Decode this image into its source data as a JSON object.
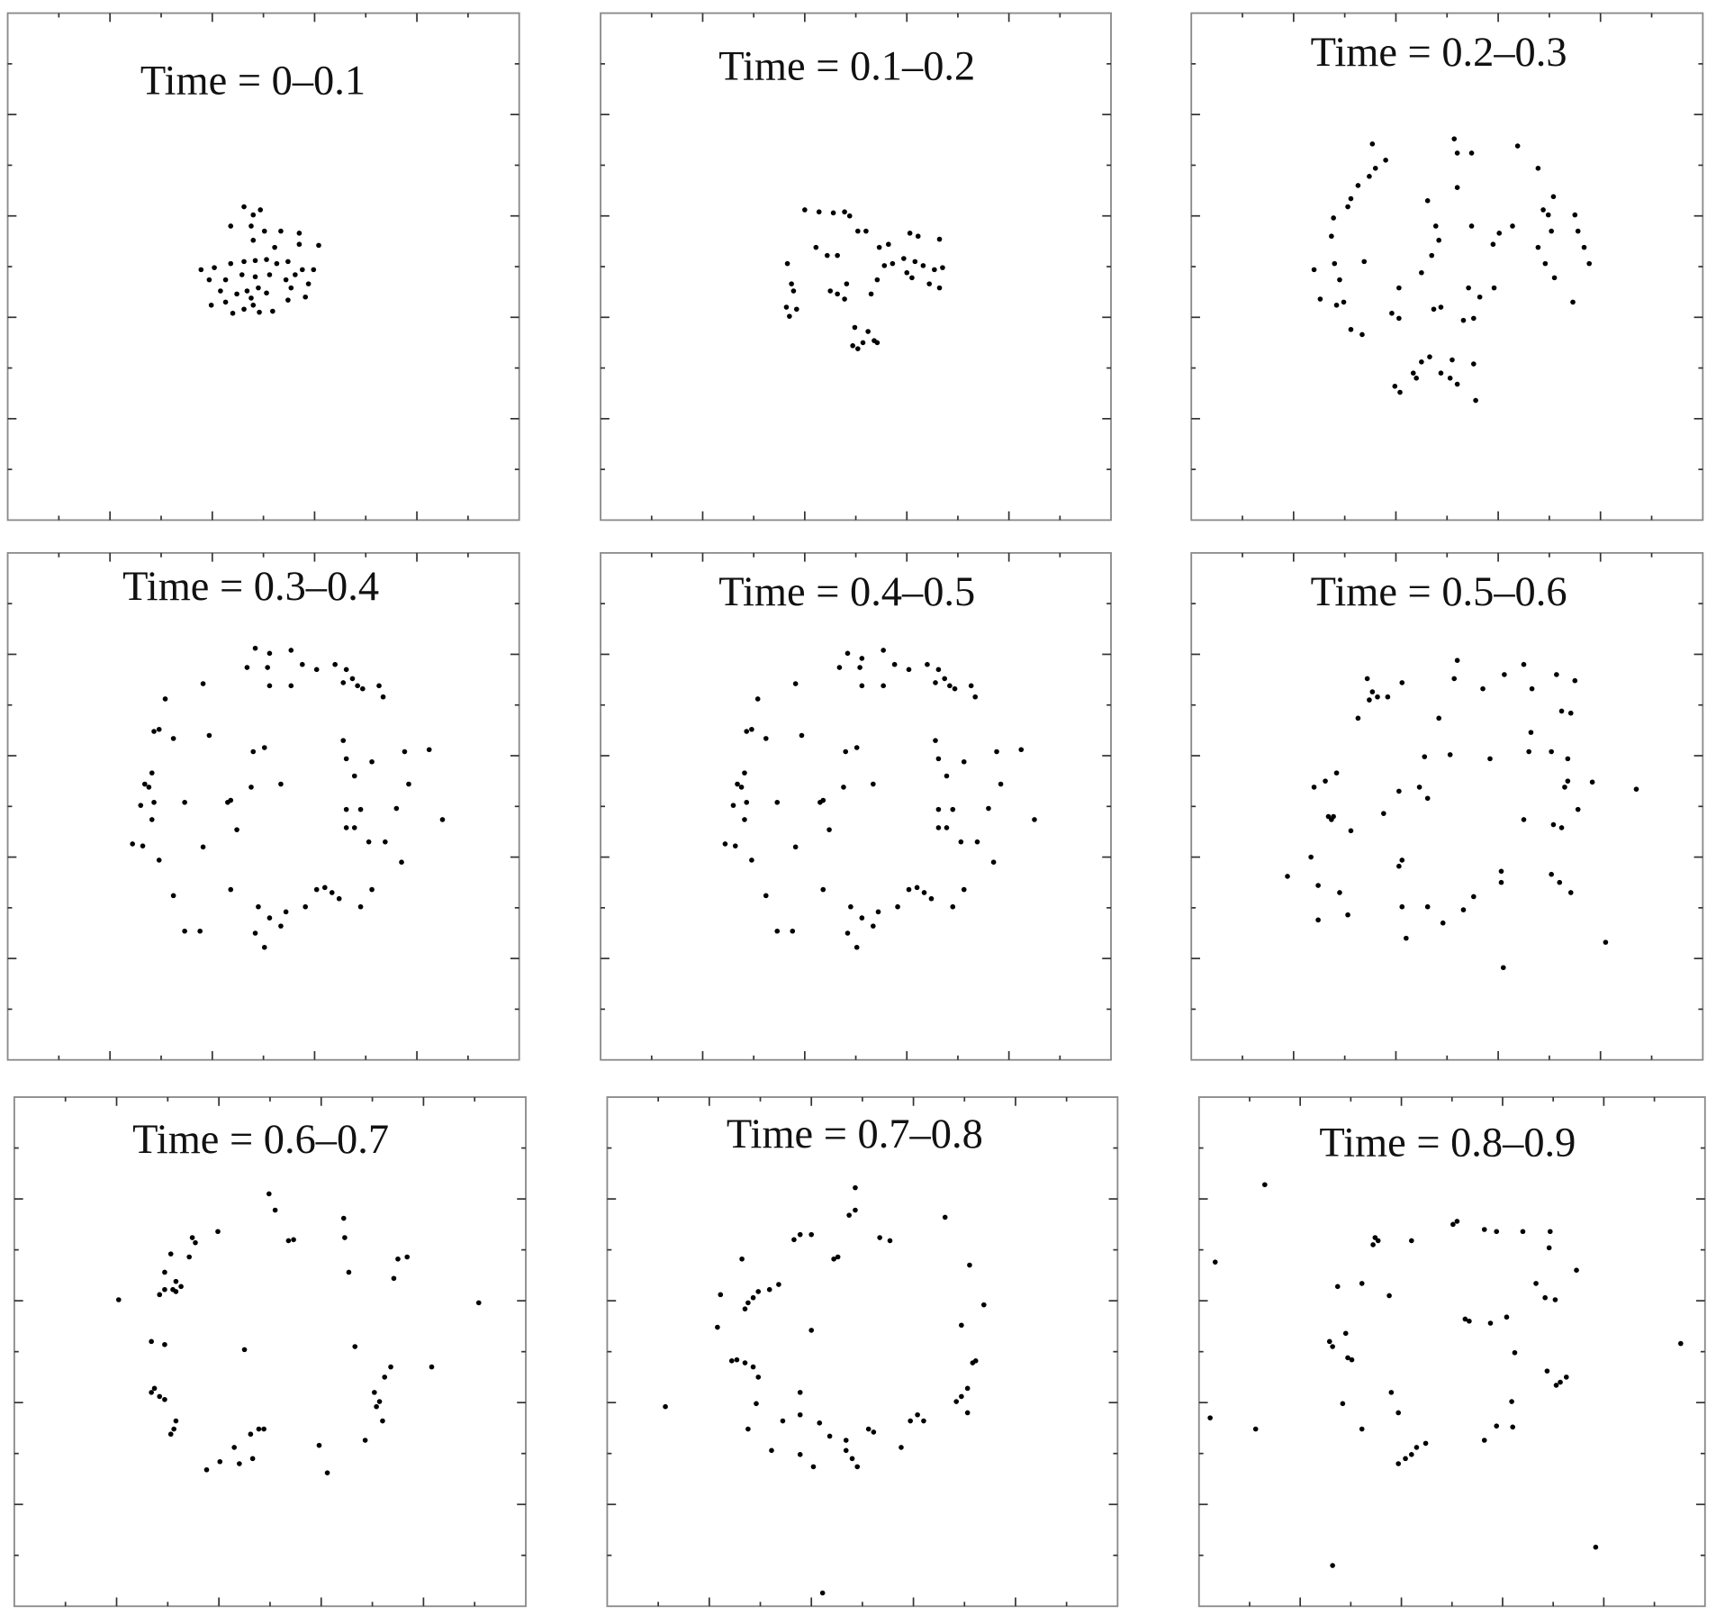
{
  "chart_data": [
    {
      "type": "scatter",
      "title": "Time = 0–0.1",
      "color": "#000000",
      "xlim": [
        0,
        5
      ],
      "ylim": [
        0,
        5
      ],
      "xticks": [
        0.5,
        1,
        1.5,
        2,
        2.5,
        3,
        3.5,
        4,
        4.5
      ],
      "yticks": [
        0.5,
        1,
        1.5,
        2,
        2.5,
        3,
        3.5,
        4,
        4.5
      ],
      "x": [
        2.31,
        2.4,
        2.47,
        2.18,
        2.38,
        2.51,
        2.67,
        2.85,
        3.04,
        2.85,
        2.4,
        2.61,
        1.89,
        2.02,
        2.18,
        2.31,
        2.42,
        2.53,
        2.63,
        2.74,
        2.88,
        2.99,
        1.97,
        2.13,
        2.29,
        2.42,
        2.56,
        2.72,
        2.94,
        2.08,
        2.24,
        2.34,
        2.45,
        2.53,
        2.77,
        2.91,
        1.99,
        2.13,
        2.2,
        2.31,
        2.4,
        2.46,
        2.59,
        2.74,
        2.38,
        2.81
      ],
      "values": [
        3.09,
        3.01,
        3.06,
        2.9,
        2.9,
        2.85,
        2.85,
        2.83,
        2.71,
        2.72,
        2.76,
        2.69,
        2.47,
        2.49,
        2.53,
        2.55,
        2.56,
        2.57,
        2.53,
        2.55,
        2.47,
        2.47,
        2.37,
        2.37,
        2.42,
        2.4,
        2.42,
        2.37,
        2.33,
        2.26,
        2.23,
        2.26,
        2.29,
        2.24,
        2.29,
        2.2,
        2.12,
        2.15,
        2.04,
        2.08,
        2.12,
        2.05,
        2.06,
        2.17,
        2.19,
        2.42
      ]
    },
    {
      "type": "scatter",
      "title": "Time = 0.1–0.2",
      "color": "#000000",
      "xlim": [
        0,
        5
      ],
      "ylim": [
        0,
        5
      ],
      "xticks": [
        0.5,
        1,
        1.5,
        2,
        2.5,
        3,
        3.5,
        4,
        4.5
      ],
      "yticks": [
        0.5,
        1,
        1.5,
        2,
        2.5,
        3,
        3.5,
        4,
        4.5
      ],
      "x": [
        2.0,
        2.14,
        2.28,
        2.39,
        2.44,
        2.52,
        2.6,
        2.22,
        2.32,
        2.11,
        2.73,
        2.86,
        2.82,
        3.03,
        3.11,
        3.32,
        2.97,
        3.08,
        3.16,
        3.27,
        3.35,
        3.0,
        3.22,
        3.32,
        3.05,
        2.78,
        2.71,
        2.65,
        2.41,
        2.32,
        2.25,
        2.39,
        1.83,
        1.87,
        1.89,
        1.82,
        1.85,
        1.92,
        2.49,
        2.62,
        2.68,
        2.57,
        2.47,
        2.52,
        2.71
      ],
      "values": [
        3.06,
        3.04,
        3.03,
        3.04,
        3.0,
        2.85,
        2.85,
        2.61,
        2.61,
        2.69,
        2.69,
        2.53,
        2.72,
        2.83,
        2.8,
        2.77,
        2.58,
        2.55,
        2.51,
        2.47,
        2.49,
        2.44,
        2.33,
        2.29,
        2.39,
        2.51,
        2.37,
        2.23,
        2.33,
        2.23,
        2.26,
        2.18,
        2.53,
        2.33,
        2.26,
        2.1,
        2.01,
        2.08,
        1.9,
        1.86,
        1.77,
        1.75,
        1.72,
        1.69,
        1.75
      ]
    },
    {
      "type": "scatter",
      "title": "Time = 0.2–0.3",
      "color": "#000000",
      "xlim": [
        0,
        5
      ],
      "ylim": [
        0,
        5
      ],
      "xticks": [
        0.5,
        1,
        1.5,
        2,
        2.5,
        3,
        3.5,
        4,
        4.5
      ],
      "yticks": [
        0.5,
        1,
        1.5,
        2,
        2.5,
        3,
        3.5,
        4,
        4.5
      ],
      "x": [
        1.77,
        1.9,
        1.8,
        1.74,
        1.63,
        1.56,
        1.53,
        1.39,
        1.37,
        1.4,
        1.2,
        1.45,
        1.26,
        1.42,
        1.49,
        1.56,
        1.67,
        1.69,
        2.31,
        2.39,
        2.42,
        2.35,
        2.25,
        2.57,
        2.6,
        2.74,
        2.6,
        3.19,
        3.39,
        3.54,
        3.49,
        3.52,
        3.44,
        3.75,
        3.78,
        3.84,
        3.89,
        3.39,
        3.46,
        3.55,
        3.73,
        3.14,
        3.01,
        2.74,
        2.95,
        2.71,
        2.82,
        2.96,
        2.76,
        2.66,
        2.37,
        2.44,
        2.03,
        1.96,
        2.03,
        2.25,
        2.33,
        2.44,
        2.55,
        2.6,
        2.76,
        2.78,
        2.53,
        2.2,
        1.99,
        2.04,
        2.17
      ],
      "values": [
        3.71,
        3.55,
        3.47,
        3.39,
        3.3,
        3.17,
        3.09,
        2.98,
        2.8,
        2.53,
        2.47,
        2.37,
        2.18,
        2.12,
        2.15,
        1.88,
        1.83,
        2.55,
        3.15,
        2.9,
        2.76,
        2.61,
        2.44,
        3.76,
        3.62,
        3.62,
        3.28,
        3.69,
        3.47,
        3.19,
        3.01,
        2.85,
        3.06,
        3.01,
        2.85,
        2.69,
        2.53,
        2.69,
        2.53,
        2.39,
        2.15,
        2.9,
        2.83,
        2.9,
        2.72,
        2.29,
        2.2,
        2.29,
        1.99,
        1.97,
        2.08,
        2.1,
        2.29,
        2.04,
        1.99,
        1.56,
        1.61,
        1.45,
        1.58,
        1.34,
        1.54,
        1.18,
        1.4,
        1.4,
        1.32,
        1.26,
        1.45
      ]
    },
    {
      "type": "scatter",
      "title": "Time = 0.3–0.4",
      "color": "#000000",
      "xlim": [
        0,
        5
      ],
      "ylim": [
        0,
        5
      ],
      "xticks": [
        0.5,
        1,
        1.5,
        2,
        2.5,
        3,
        3.5,
        4,
        4.5
      ],
      "yticks": [
        0.5,
        1,
        1.5,
        2,
        2.5,
        3,
        3.5,
        4,
        4.5
      ],
      "x": [
        2.42,
        2.56,
        2.77,
        2.88,
        3.02,
        3.2,
        3.31,
        3.37,
        3.42,
        3.28,
        3.47,
        3.63,
        3.67,
        2.34,
        2.54,
        2.56,
        2.77,
        1.91,
        1.54,
        1.48,
        1.43,
        1.62,
        1.97,
        1.41,
        1.34,
        1.38,
        1.43,
        1.3,
        1.41,
        1.22,
        1.32,
        1.48,
        1.62,
        1.73,
        1.88,
        2.18,
        2.45,
        2.42,
        2.51,
        2.56,
        2.67,
        2.72,
        2.91,
        3.02,
        3.1,
        3.17,
        3.24,
        3.45,
        3.56,
        3.85,
        4.25,
        3.69,
        3.53,
        3.31,
        3.39,
        3.31,
        3.45,
        3.8,
        3.92,
        3.56,
        3.39,
        3.28,
        3.31,
        3.88,
        4.12,
        2.4,
        2.51,
        2.38,
        2.67,
        2.18,
        2.15,
        2.24,
        1.91,
        1.73
      ],
      "values": [
        4.06,
        4.01,
        4.04,
        3.9,
        3.85,
        3.9,
        3.85,
        3.76,
        3.69,
        3.72,
        3.66,
        3.69,
        3.58,
        3.87,
        3.87,
        3.69,
        3.69,
        3.71,
        3.56,
        3.26,
        3.24,
        3.17,
        3.2,
        2.83,
        2.72,
        2.69,
        2.54,
        2.51,
        2.37,
        2.13,
        2.11,
        1.97,
        1.62,
        1.27,
        1.27,
        1.68,
        1.51,
        1.25,
        1.11,
        1.4,
        1.32,
        1.46,
        1.51,
        1.68,
        1.7,
        1.65,
        1.59,
        1.51,
        1.68,
        1.95,
        2.37,
        2.15,
        2.15,
        2.29,
        2.29,
        2.47,
        2.47,
        2.48,
        2.72,
        2.94,
        2.8,
        3.15,
        2.97,
        3.04,
        3.06,
        3.04,
        3.08,
        2.69,
        2.72,
        2.56,
        2.54,
        2.27,
        2.1,
        2.54
      ]
    },
    {
      "type": "scatter",
      "title": "Time = 0.4–0.5",
      "color": "#000000",
      "xlim": [
        0,
        5
      ],
      "ylim": [
        0,
        5
      ],
      "xticks": [
        0.5,
        1,
        1.5,
        2,
        2.5,
        3,
        3.5,
        4,
        4.5
      ],
      "yticks": [
        0.5,
        1,
        1.5,
        2,
        2.5,
        3,
        3.5,
        4,
        4.5
      ],
      "x": [
        2.42,
        2.56,
        2.77,
        2.88,
        3.02,
        3.2,
        3.31,
        3.37,
        3.42,
        3.28,
        3.47,
        3.63,
        3.67,
        2.34,
        2.54,
        2.56,
        2.77,
        1.91,
        1.54,
        1.48,
        1.43,
        1.62,
        1.97,
        1.41,
        1.34,
        1.38,
        1.43,
        1.3,
        1.41,
        1.22,
        1.32,
        1.48,
        1.62,
        1.73,
        1.88,
        2.18,
        2.45,
        2.42,
        2.51,
        2.56,
        2.67,
        2.72,
        2.91,
        3.02,
        3.1,
        3.17,
        3.24,
        3.45,
        3.56,
        3.85,
        4.25,
        3.69,
        3.53,
        3.31,
        3.39,
        3.31,
        3.45,
        3.8,
        3.92,
        3.56,
        3.39,
        3.28,
        3.31,
        3.88,
        4.12,
        2.4,
        2.51,
        2.38,
        2.67,
        2.18,
        2.15,
        2.24,
        1.91,
        1.73
      ],
      "values": [
        4.01,
        3.96,
        4.04,
        3.9,
        3.85,
        3.9,
        3.85,
        3.76,
        3.69,
        3.72,
        3.66,
        3.69,
        3.58,
        3.87,
        3.87,
        3.69,
        3.69,
        3.71,
        3.56,
        3.26,
        3.24,
        3.17,
        3.2,
        2.83,
        2.72,
        2.69,
        2.54,
        2.51,
        2.37,
        2.13,
        2.11,
        1.97,
        1.62,
        1.27,
        1.27,
        1.68,
        1.51,
        1.25,
        1.11,
        1.4,
        1.32,
        1.46,
        1.51,
        1.68,
        1.7,
        1.65,
        1.59,
        1.51,
        1.68,
        1.95,
        2.37,
        2.15,
        2.15,
        2.29,
        2.29,
        2.47,
        2.47,
        2.48,
        2.72,
        2.94,
        2.8,
        3.15,
        2.97,
        3.04,
        3.06,
        3.04,
        3.08,
        2.69,
        2.72,
        2.56,
        2.54,
        2.27,
        2.1,
        2.54
      ]
    },
    {
      "type": "scatter",
      "title": "Time = 0.5–0.6",
      "color": "#000000",
      "xlim": [
        0,
        5
      ],
      "ylim": [
        0,
        5
      ],
      "xticks": [
        0.5,
        1,
        1.5,
        2,
        2.5,
        3,
        3.5,
        4,
        4.5
      ],
      "yticks": [
        0.5,
        1,
        1.5,
        2,
        2.5,
        3,
        3.5,
        4,
        4.5
      ],
      "x": [
        1.72,
        1.77,
        1.74,
        1.82,
        1.92,
        2.06,
        1.63,
        2.6,
        2.57,
        2.85,
        3.06,
        3.25,
        3.33,
        3.57,
        3.75,
        3.62,
        3.71,
        2.42,
        3.52,
        3.68,
        3.32,
        3.3,
        2.28,
        2.53,
        2.92,
        2.23,
        2.03,
        2.31,
        1.42,
        1.31,
        1.2,
        1.34,
        1.39,
        1.37,
        1.56,
        3.68,
        3.65,
        3.92,
        4.35,
        3.78,
        3.25,
        3.54,
        3.62,
        2.06,
        2.03,
        1.17,
        0.94,
        1.24,
        1.45,
        1.53,
        1.24,
        2.06,
        2.31,
        2.1,
        2.46,
        2.66,
        2.76,
        3.03,
        3.03,
        3.52,
        3.6,
        3.71,
        4.05,
        3.05,
        1.88
      ],
      "values": [
        3.76,
        3.63,
        3.55,
        3.58,
        3.58,
        3.72,
        3.37,
        3.94,
        3.76,
        3.66,
        3.8,
        3.9,
        3.66,
        3.8,
        3.74,
        3.44,
        3.42,
        3.37,
        3.04,
        2.97,
        3.23,
        3.04,
        2.99,
        3.01,
        2.97,
        2.69,
        2.65,
        2.58,
        2.83,
        2.75,
        2.69,
        2.4,
        2.4,
        2.37,
        2.26,
        2.75,
        2.69,
        2.74,
        2.67,
        2.47,
        2.37,
        2.32,
        2.29,
        1.97,
        1.91,
        2.0,
        1.81,
        1.72,
        1.65,
        1.43,
        1.38,
        1.51,
        1.51,
        1.2,
        1.35,
        1.48,
        1.61,
        1.86,
        1.75,
        1.83,
        1.75,
        1.65,
        1.16,
        0.91,
        2.43
      ]
    },
    {
      "type": "scatter",
      "title": "Time = 0.6–0.7",
      "color": "#000000",
      "xlim": [
        0,
        5
      ],
      "ylim": [
        0,
        5
      ],
      "xticks": [
        0.5,
        1,
        1.5,
        2,
        2.5,
        3,
        3.5,
        4,
        4.5
      ],
      "yticks": [
        0.5,
        1,
        1.5,
        2,
        2.5,
        3,
        3.5,
        4,
        4.5
      ],
      "x": [
        2.49,
        2.55,
        2.68,
        2.73,
        3.22,
        3.23,
        3.27,
        1.99,
        1.74,
        1.77,
        1.71,
        1.53,
        1.47,
        1.58,
        1.63,
        1.47,
        1.42,
        1.55,
        1.58,
        3.75,
        3.84,
        3.71,
        1.02,
        4.54,
        1.34,
        1.47,
        2.25,
        3.33,
        3.68,
        3.62,
        4.08,
        1.37,
        1.34,
        1.42,
        1.47,
        3.52,
        3.57,
        3.54,
        3.6,
        1.58,
        1.56,
        1.53,
        3.43,
        2.31,
        2.39,
        2.44,
        2.15,
        2.2,
        2.33,
        2.01,
        1.88,
        2.98,
        3.06
      ],
      "values": [
        4.05,
        3.89,
        3.59,
        3.6,
        3.81,
        3.62,
        3.28,
        3.68,
        3.62,
        3.57,
        3.43,
        3.46,
        3.28,
        3.19,
        3.14,
        3.11,
        3.06,
        3.11,
        3.09,
        3.41,
        3.43,
        3.22,
        3.01,
        2.98,
        2.6,
        2.57,
        2.52,
        2.55,
        2.35,
        2.25,
        2.35,
        2.14,
        2.1,
        2.06,
        2.03,
        2.1,
        2.01,
        1.96,
        1.82,
        1.82,
        1.74,
        1.69,
        1.63,
        1.69,
        1.74,
        1.74,
        1.56,
        1.4,
        1.45,
        1.42,
        1.34,
        1.58,
        1.31
      ]
    },
    {
      "type": "scatter",
      "title": "Time = 0.7–0.8",
      "color": "#000000",
      "xlim": [
        0,
        5
      ],
      "ylim": [
        0,
        5
      ],
      "xticks": [
        0.5,
        1,
        1.5,
        2,
        2.5,
        3,
        3.5,
        4,
        4.5
      ],
      "yticks": [
        0.5,
        1,
        1.5,
        2,
        2.5,
        3,
        3.5,
        4,
        4.5
      ],
      "x": [
        2.43,
        2.37,
        2.43,
        3.31,
        1.83,
        1.89,
        2.0,
        2.67,
        2.77,
        2.22,
        2.26,
        1.32,
        1.68,
        1.59,
        1.48,
        1.43,
        1.38,
        1.11,
        1.35,
        3.55,
        3.69,
        1.08,
        2.0,
        3.47,
        3.61,
        3.58,
        1.22,
        1.27,
        1.35,
        1.43,
        1.48,
        3.53,
        3.47,
        3.42,
        1.89,
        1.46,
        0.57,
        3.53,
        1.89,
        1.72,
        1.38,
        2.08,
        3.04,
        3.1,
        2.97,
        2.56,
        2.61,
        2.34,
        2.34,
        2.4,
        2.18,
        1.89,
        2.02,
        1.61,
        2.45,
        2.88,
        2.11
      ],
      "values": [
        4.11,
        3.84,
        3.89,
        3.82,
        3.6,
        3.65,
        3.65,
        3.62,
        3.59,
        3.41,
        3.43,
        3.41,
        3.16,
        3.11,
        3.09,
        3.03,
        2.98,
        3.06,
        2.92,
        3.35,
        2.96,
        2.74,
        2.71,
        2.76,
        2.41,
        2.39,
        2.41,
        2.42,
        2.39,
        2.35,
        2.25,
        2.14,
        2.06,
        2.01,
        2.1,
        1.99,
        1.96,
        1.9,
        1.88,
        1.82,
        1.74,
        1.8,
        1.88,
        1.82,
        1.82,
        1.74,
        1.71,
        1.63,
        1.53,
        1.45,
        1.67,
        1.49,
        1.37,
        1.53,
        1.37,
        1.56,
        0.13
      ]
    },
    {
      "type": "scatter",
      "title": "Time = 0.8–0.9",
      "color": "#000000",
      "xlim": [
        0,
        5
      ],
      "ylim": [
        0,
        5
      ],
      "xticks": [
        0.5,
        1,
        1.5,
        2,
        2.5,
        3,
        3.5,
        4,
        4.5
      ],
      "yticks": [
        0.5,
        1,
        1.5,
        2,
        2.5,
        3,
        3.5,
        4,
        4.5
      ],
      "x": [
        0.65,
        0.16,
        1.74,
        1.77,
        1.72,
        2.1,
        2.51,
        2.55,
        2.82,
        2.94,
        3.2,
        3.47,
        3.46,
        3.73,
        1.37,
        1.61,
        1.88,
        3.33,
        3.42,
        3.52,
        1.29,
        1.32,
        1.45,
        1.47,
        1.51,
        2.63,
        2.67,
        2.88,
        3.04,
        3.12,
        4.76,
        3.44,
        3.53,
        3.57,
        3.63,
        1.9,
        1.42,
        3.09,
        1.97,
        0.11,
        0.56,
        1.61,
        2.94,
        3.1,
        2.82,
        2.24,
        2.15,
        2.1,
        2.04,
        1.97,
        1.32,
        3.92
      ],
      "values": [
        4.14,
        3.38,
        3.62,
        3.59,
        3.55,
        3.59,
        3.75,
        3.78,
        3.7,
        3.68,
        3.68,
        3.68,
        3.52,
        3.3,
        3.14,
        3.17,
        3.05,
        3.17,
        3.03,
        3.01,
        2.6,
        2.55,
        2.68,
        2.44,
        2.42,
        2.82,
        2.8,
        2.78,
        2.84,
        2.49,
        2.58,
        2.31,
        2.17,
        2.2,
        2.25,
        2.1,
        1.99,
        2.01,
        1.9,
        1.85,
        1.74,
        1.74,
        1.77,
        1.76,
        1.63,
        1.6,
        1.56,
        1.49,
        1.45,
        1.4,
        0.4,
        0.58
      ]
    }
  ]
}
